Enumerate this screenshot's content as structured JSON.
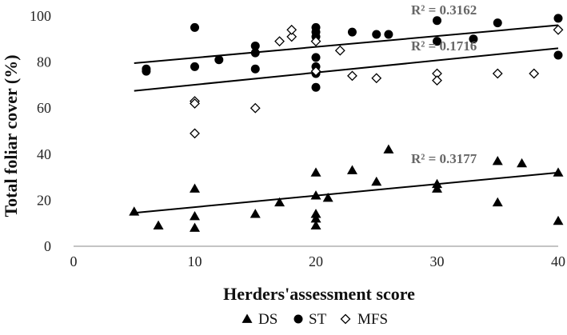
{
  "chart_data": {
    "type": "scatter",
    "xlabel": "Herders'assessment score",
    "ylabel": "Total foliar cover (%)",
    "xlim": [
      0,
      40
    ],
    "ylim": [
      0,
      100
    ],
    "xticks": [
      0,
      10,
      20,
      30,
      40
    ],
    "yticks": [
      0,
      20,
      40,
      60,
      80,
      100
    ],
    "grid": false,
    "legend_position": "bottom",
    "series": [
      {
        "name": "DS",
        "marker": "triangle-filled",
        "color": "#000000",
        "points": [
          [
            5,
            15
          ],
          [
            7,
            9
          ],
          [
            10,
            25
          ],
          [
            10,
            13
          ],
          [
            10,
            8
          ],
          [
            15,
            14
          ],
          [
            17,
            19
          ],
          [
            20,
            32
          ],
          [
            20,
            22
          ],
          [
            20,
            14
          ],
          [
            20,
            12
          ],
          [
            20,
            9
          ],
          [
            21,
            21
          ],
          [
            23,
            33
          ],
          [
            25,
            28
          ],
          [
            26,
            42
          ],
          [
            30,
            27
          ],
          [
            30,
            25
          ],
          [
            35,
            37
          ],
          [
            35,
            19
          ],
          [
            37,
            36
          ],
          [
            40,
            32
          ],
          [
            40,
            11
          ]
        ],
        "trend": {
          "from": [
            5,
            14.5
          ],
          "to": [
            40,
            32
          ],
          "r2_label": "R² = 0.3177"
        }
      },
      {
        "name": "ST",
        "marker": "circle-filled",
        "color": "#000000",
        "points": [
          [
            6,
            77
          ],
          [
            6,
            76
          ],
          [
            10,
            95
          ],
          [
            10,
            78
          ],
          [
            12,
            81
          ],
          [
            15,
            87
          ],
          [
            15,
            84
          ],
          [
            15,
            77
          ],
          [
            20,
            95
          ],
          [
            20,
            93
          ],
          [
            20,
            91
          ],
          [
            20,
            82
          ],
          [
            20,
            78
          ],
          [
            20,
            75
          ],
          [
            20,
            69
          ],
          [
            23,
            93
          ],
          [
            25,
            92
          ],
          [
            26,
            92
          ],
          [
            30,
            98
          ],
          [
            30,
            89
          ],
          [
            33,
            90
          ],
          [
            35,
            97
          ],
          [
            40,
            99
          ],
          [
            40,
            83
          ]
        ],
        "trend": {
          "from": [
            5,
            79.5
          ],
          "to": [
            40,
            96
          ],
          "r2_label": "R² = 0.3162"
        }
      },
      {
        "name": "MFS",
        "marker": "diamond-open",
        "color": "#000000",
        "points": [
          [
            10,
            63
          ],
          [
            10,
            62
          ],
          [
            10,
            49
          ],
          [
            15,
            60
          ],
          [
            17,
            89
          ],
          [
            18,
            91
          ],
          [
            18,
            94
          ],
          [
            20,
            89
          ],
          [
            20,
            76
          ],
          [
            22,
            85
          ],
          [
            23,
            74
          ],
          [
            25,
            73
          ],
          [
            30,
            75
          ],
          [
            30,
            72
          ],
          [
            35,
            75
          ],
          [
            38,
            75
          ],
          [
            40,
            94
          ]
        ],
        "trend": {
          "from": [
            5,
            67.5
          ],
          "to": [
            40,
            86
          ],
          "r2_label": "R² = 0.1716"
        }
      }
    ]
  }
}
